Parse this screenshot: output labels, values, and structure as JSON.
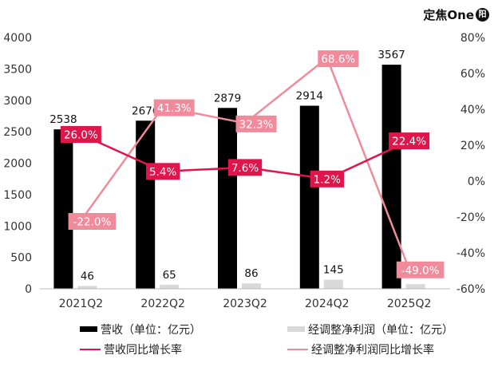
{
  "brand": {
    "name": "定焦One",
    "logo_text": "阳"
  },
  "chart_data": {
    "type": "bar",
    "categories": [
      "2021Q2",
      "2022Q2",
      "2023Q2",
      "2024Q2",
      "2025Q2"
    ],
    "series": [
      {
        "name": "营收（单位：亿元）",
        "kind": "bar",
        "axis": "left",
        "color": "#000000",
        "values": [
          2538,
          2676,
          2879,
          2914,
          3567
        ]
      },
      {
        "name": "经调整净利润（单位：亿元）",
        "kind": "bar",
        "axis": "left",
        "color": "#d9d9d9",
        "values": [
          46,
          65,
          86,
          145,
          74
        ]
      },
      {
        "name": "营收同比增长率",
        "kind": "line",
        "axis": "right",
        "color": "#e0154b",
        "values": [
          26.0,
          5.4,
          7.6,
          1.2,
          22.4
        ],
        "labels": [
          "26.0%",
          "5.4%",
          "7.6%",
          "1.2%",
          "22.4%"
        ]
      },
      {
        "name": "经调整净利润同比增长率",
        "kind": "line",
        "axis": "right",
        "color": "#f08b9c",
        "values": [
          -22.0,
          41.3,
          32.3,
          68.6,
          -49.0
        ],
        "labels": [
          "-22.0%",
          "41.3%",
          "32.3%",
          "68.6%",
          "-49.0%"
        ]
      }
    ],
    "y_left": {
      "range": [
        0,
        4000
      ],
      "ticks": [
        "0",
        "500",
        "1000",
        "1500",
        "2000",
        "2500",
        "3000",
        "3500",
        "4000"
      ]
    },
    "y_right": {
      "range": [
        -60,
        80
      ],
      "ticks": [
        "-60%",
        "-40%",
        "-20%",
        "0%",
        "20%",
        "40%",
        "60%",
        "80%"
      ]
    },
    "grid": false,
    "legend_position": "bottom"
  }
}
